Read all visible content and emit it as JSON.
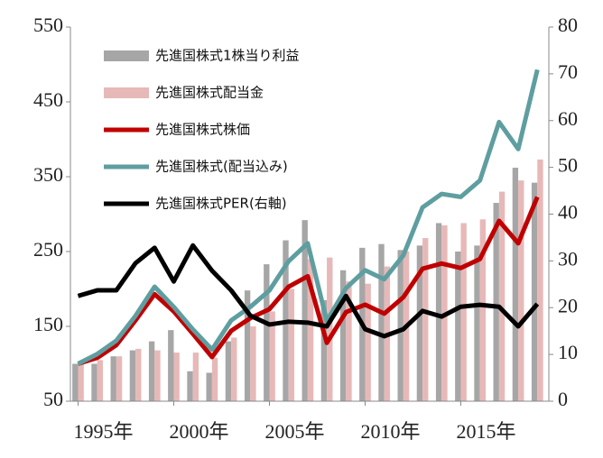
{
  "chart_data": {
    "type": "combo",
    "x": [
      1995,
      1996,
      1997,
      1998,
      1999,
      2000,
      2001,
      2002,
      2003,
      2004,
      2005,
      2006,
      2007,
      2008,
      2009,
      2010,
      2011,
      2012,
      2013,
      2014,
      2015,
      2016,
      2017,
      2018,
      2019
    ],
    "xlim": [
      1994.6,
      2019.6
    ],
    "xticks": [
      {
        "value": 1995,
        "label": "1995年"
      },
      {
        "value": 2000,
        "label": "2000年"
      },
      {
        "value": 2005,
        "label": "2005年"
      },
      {
        "value": 2010,
        "label": "2010年"
      },
      {
        "value": 2015,
        "label": "2015年"
      }
    ],
    "ylim": [
      50,
      550
    ],
    "yticks": [
      50,
      150,
      250,
      350,
      450,
      550
    ],
    "y2lim": [
      0,
      80
    ],
    "y2ticks": [
      0,
      10,
      20,
      30,
      40,
      50,
      60,
      70,
      80
    ],
    "legend": "upper left",
    "series": [
      {
        "name": "先進国株式1株当り利益",
        "mark": "bar",
        "color": "#a6a6a6",
        "values": [
          100,
          100,
          110,
          118,
          130,
          145,
          90,
          88,
          130,
          198,
          233,
          265,
          292,
          185,
          225,
          255,
          260,
          252,
          258,
          288,
          250,
          258,
          315,
          362,
          342
        ]
      },
      {
        "name": "先進国株式配当金",
        "mark": "bar",
        "color": "#e6b9b8",
        "values": [
          100,
          105,
          110,
          120,
          118,
          115,
          115,
          108,
          135,
          150,
          170,
          200,
          240,
          242,
          210,
          207,
          230,
          250,
          268,
          285,
          288,
          293,
          330,
          345,
          373
        ]
      },
      {
        "name": "先進国株式株価",
        "mark": "line",
        "color": "#c00000",
        "values": [
          100,
          108,
          125,
          158,
          193,
          170,
          140,
          109,
          144,
          161,
          173,
          203,
          217,
          128,
          169,
          179,
          167,
          189,
          227,
          234,
          228,
          240,
          291,
          261,
          323
        ]
      },
      {
        "name": "先進国株式(配当込み)",
        "mark": "line",
        "color": "#5f9ea0",
        "values": [
          100,
          113,
          131,
          164,
          203,
          176,
          146,
          119,
          158,
          176,
          198,
          237,
          261,
          157,
          201,
          225,
          213,
          245,
          309,
          327,
          323,
          345,
          423,
          387,
          493
        ]
      },
      {
        "name": "先進国株式PER(右軸)",
        "mark": "line",
        "color": "#000000",
        "axis": "y2",
        "values": [
          22.5,
          23.7,
          23.7,
          29.5,
          32.8,
          25.6,
          33.3,
          27.9,
          23.7,
          18.3,
          16.4,
          17,
          16.8,
          16,
          22.5,
          15.4,
          13.9,
          15.4,
          19.3,
          18.1,
          20.2,
          20.6,
          20.2,
          16,
          20.8
        ]
      }
    ]
  }
}
